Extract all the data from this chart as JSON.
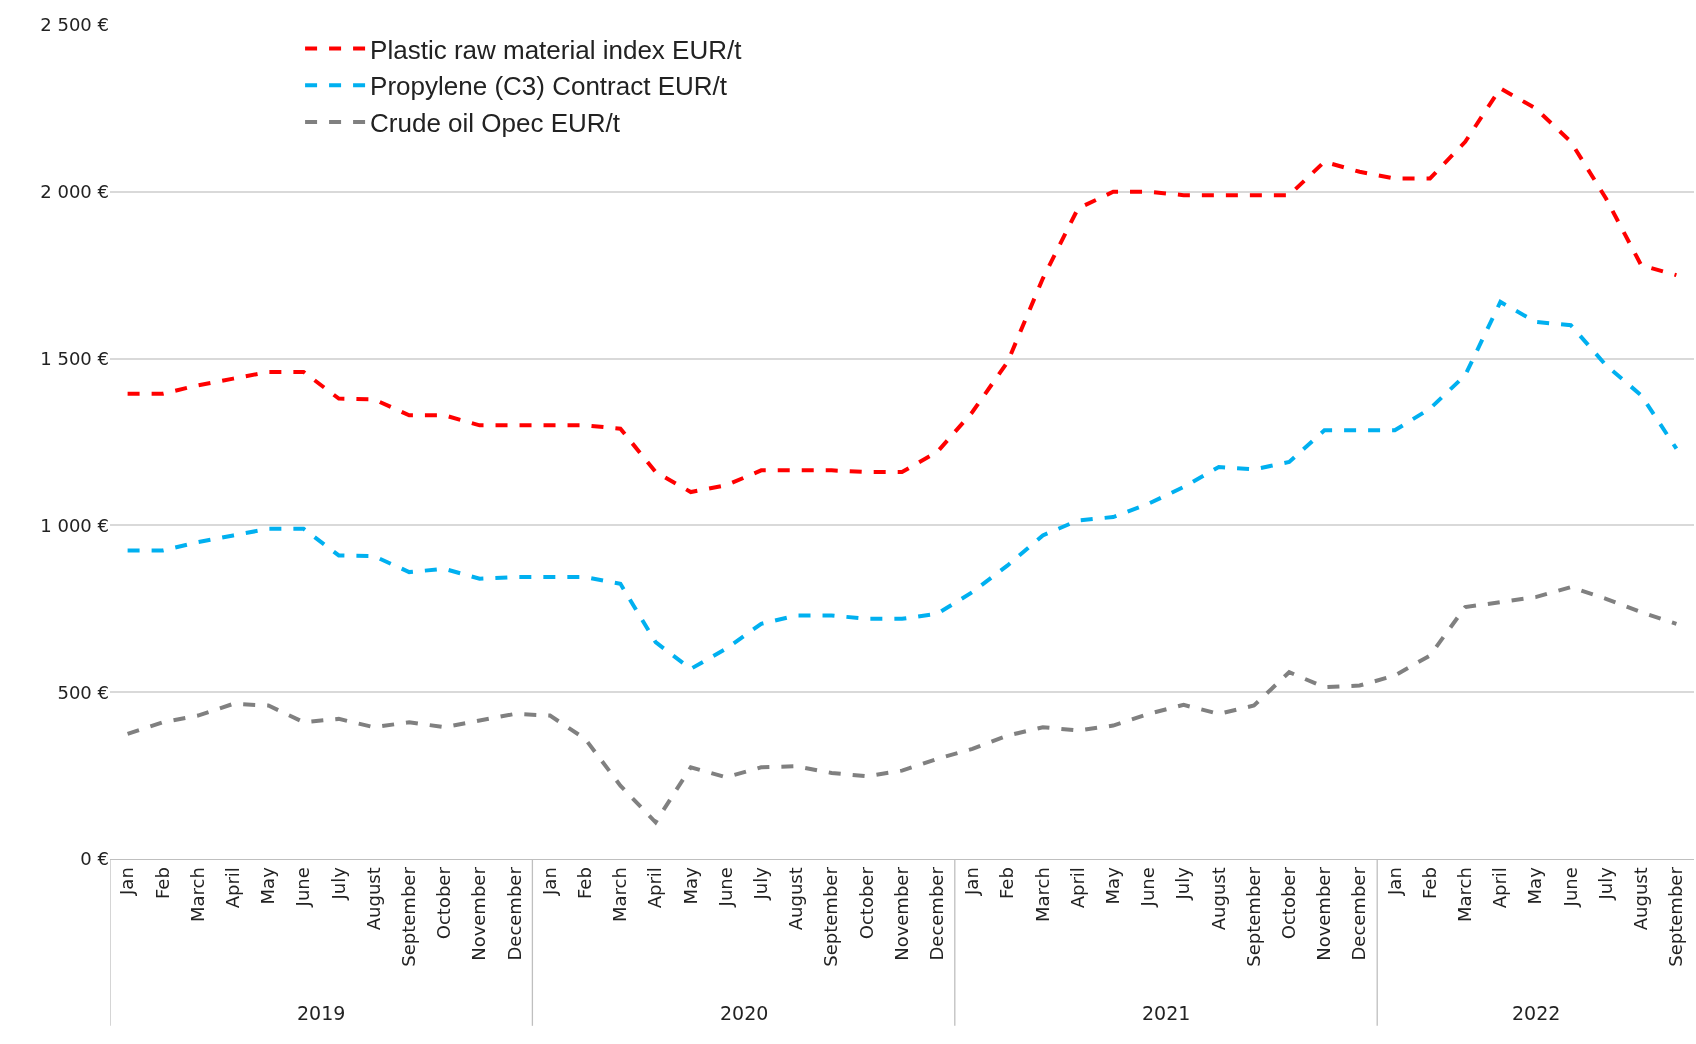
{
  "chart_data": {
    "type": "line",
    "categories": [
      "Jan",
      "Feb",
      "March",
      "April",
      "May",
      "June",
      "July",
      "August",
      "September",
      "October",
      "November",
      "December",
      "Jan",
      "Feb",
      "March",
      "April",
      "May",
      "June",
      "July",
      "August",
      "September",
      "October",
      "November",
      "December",
      "Jan",
      "Feb",
      "March",
      "April",
      "May",
      "June",
      "July",
      "August",
      "September",
      "October",
      "November",
      "December",
      "Jan",
      "Feb",
      "March",
      "April",
      "May",
      "June",
      "July",
      "August",
      "September"
    ],
    "series": [
      {
        "name": "Plastic raw material index EUR/t",
        "color": "#ff0000",
        "values": [
          1395,
          1395,
          1420,
          1440,
          1460,
          1460,
          1380,
          1378,
          1330,
          1330,
          1300,
          1300,
          1300,
          1300,
          1290,
          1160,
          1100,
          1120,
          1165,
          1165,
          1165,
          1160,
          1160,
          1220,
          1340,
          1490,
          1740,
          1950,
          2000,
          2000,
          1990,
          1990,
          1990,
          1990,
          2090,
          2060,
          2040,
          2040,
          2150,
          2310,
          2250,
          2150,
          1980,
          1780,
          1750
        ]
      },
      {
        "name": "Propylene (C3) Contract EUR/t",
        "color": "#00b0f0",
        "values": [
          925,
          925,
          950,
          970,
          990,
          990,
          910,
          908,
          860,
          870,
          840,
          845,
          845,
          845,
          825,
          650,
          570,
          630,
          705,
          730,
          730,
          720,
          720,
          735,
          800,
          880,
          970,
          1015,
          1025,
          1065,
          1115,
          1175,
          1168,
          1190,
          1285,
          1285,
          1285,
          1350,
          1450,
          1670,
          1610,
          1600,
          1480,
          1390,
          1230
        ]
      },
      {
        "name": "Crude oil Opec EUR/t",
        "color": "#808080",
        "values": [
          375,
          410,
          430,
          465,
          460,
          410,
          420,
          395,
          410,
          395,
          415,
          435,
          430,
          360,
          220,
          110,
          275,
          245,
          275,
          278,
          258,
          248,
          265,
          300,
          330,
          370,
          395,
          385,
          400,
          435,
          462,
          435,
          460,
          560,
          515,
          520,
          550,
          610,
          755,
          770,
          785,
          815,
          780,
          740,
          705
        ]
      }
    ],
    "annotations": [
      "2019",
      "2020",
      "2021",
      "2022"
    ],
    "ylim": [
      0,
      2500
    ],
    "yticks": [
      {
        "value": 0,
        "label": "0 €"
      },
      {
        "value": 500,
        "label": "500 €"
      },
      {
        "value": 1000,
        "label": "1 000 €"
      },
      {
        "value": 1500,
        "label": "1 500 €"
      },
      {
        "value": 2000,
        "label": "2 000 €"
      },
      {
        "value": 2500,
        "label": "2 500 €"
      }
    ],
    "grid": "y",
    "legend": "top left",
    "line_style": "dashed",
    "marker": "none"
  }
}
